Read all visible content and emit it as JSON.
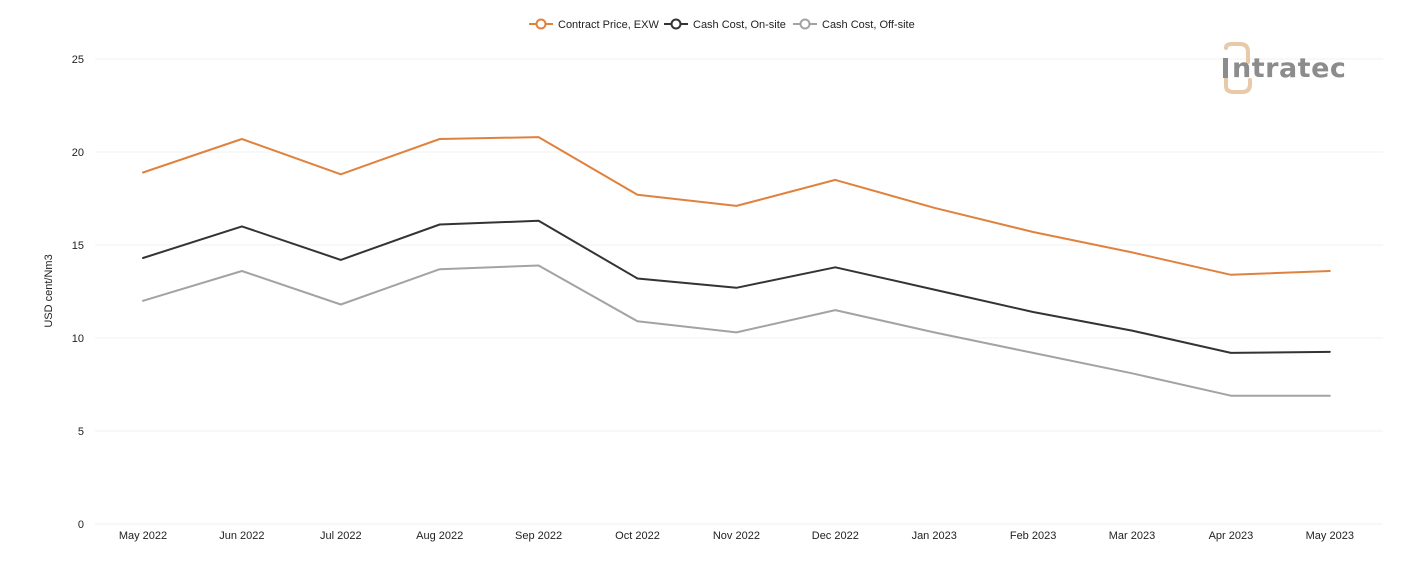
{
  "brand": {
    "logo_text": "intratec",
    "logo_colors": {
      "text": "#8c8c8c",
      "accent": "#e8c9a8"
    }
  },
  "chart_data": {
    "type": "line",
    "title": "",
    "xlabel": "",
    "ylabel": "USD cent/Nm3",
    "ylim": [
      0,
      25
    ],
    "yticks": [
      0,
      5,
      10,
      15,
      20,
      25
    ],
    "grid": true,
    "legend_position": "top-center",
    "categories": [
      "May 2022",
      "Jun 2022",
      "Jul 2022",
      "Aug 2022",
      "Sep 2022",
      "Oct 2022",
      "Nov 2022",
      "Dec 2022",
      "Jan 2023",
      "Feb 2023",
      "Mar 2023",
      "Apr 2023",
      "May 2023"
    ],
    "series": [
      {
        "name": "Contract Price, EXW",
        "color": "#e0823e",
        "values": [
          18.9,
          20.7,
          18.8,
          20.7,
          20.8,
          17.7,
          17.1,
          18.5,
          17.0,
          15.7,
          14.6,
          13.4,
          13.6
        ]
      },
      {
        "name": "Cash Cost, On-site",
        "color": "#333333",
        "values": [
          14.3,
          16.0,
          14.2,
          16.1,
          16.3,
          13.2,
          12.7,
          13.8,
          12.6,
          11.4,
          10.4,
          9.2,
          9.25
        ]
      },
      {
        "name": "Cash Cost, Off-site",
        "color": "#a3a3a3",
        "values": [
          12.0,
          13.6,
          11.8,
          13.7,
          13.9,
          10.9,
          10.3,
          11.5,
          10.3,
          9.2,
          8.1,
          6.9,
          6.9
        ]
      }
    ]
  }
}
